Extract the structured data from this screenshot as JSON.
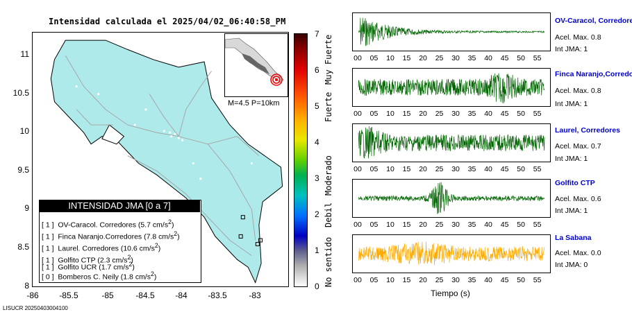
{
  "title": "Intensidad calculada el 2025/04/02_06:40:58_PM",
  "footer_id": "LISUCR 20250403004100",
  "map": {
    "lat_ticks": [
      "11",
      "10.5",
      "10",
      "9.5",
      "9",
      "8.5",
      "8"
    ],
    "lon_ticks": [
      "-86",
      "-85.5",
      "-85",
      "-84.5",
      "-84",
      "-83.5",
      "-83"
    ],
    "magnitude_label": "M=4.5 P=10km",
    "land_color": "#aeeaea"
  },
  "legend": {
    "header": "INTENSIDAD JMA [0 a 7]",
    "rows": [
      {
        "jma": "[ 1 ]",
        "text": "OV-Caracol. Corredores (5.7 cm/s",
        "exp": "2",
        "close": ")"
      },
      {
        "jma": "[ 1 ]",
        "text": "Finca Naranjo.Corredores (7.8 cm/s",
        "exp": "2",
        "close": ")"
      },
      {
        "jma": "[ 1 ]",
        "text": "Laurel. Corredores (10.6 cm/s",
        "exp": "2",
        "close": ")"
      },
      {
        "jma": "[ 1 ]",
        "text": "Golfito CTP (2.3 cm/s",
        "exp": "2",
        "close": ")"
      },
      {
        "jma": "[ 1 ]",
        "text": "Golfito UCR (1.7 cm/s",
        "exp": "2",
        "close": ")"
      },
      {
        "jma": "[ 0 ]",
        "text": "Bomberos C. Neily (1.8 cm/s",
        "exp": "2",
        "close": ")"
      }
    ]
  },
  "colorbar": {
    "ticks": [
      "7",
      "6",
      "5",
      "4",
      "3",
      "2",
      "1",
      "0"
    ],
    "words": [
      "Muy Fuerte",
      "Fuerte",
      "Moderado",
      "Debil",
      "No sentido"
    ]
  },
  "traces": {
    "x_label": "Tiempo (s)",
    "time_ticks": [
      "00",
      "05",
      "10",
      "15",
      "20",
      "25",
      "30",
      "35",
      "40",
      "45",
      "50",
      "55"
    ],
    "stations": [
      {
        "name": "OV-Caracol, Corredores",
        "acel": "Acel. Max. 0.8",
        "jma": "Int JMA: 1",
        "color": "#006600"
      },
      {
        "name": "Finca Naranjo,Corredores",
        "acel": "Acel. Max. 0.8",
        "jma": "Int JMA: 1",
        "color": "#006600"
      },
      {
        "name": "Laurel, Corredores",
        "acel": "Acel. Max. 0.7",
        "jma": "Int JMA: 1",
        "color": "#006600"
      },
      {
        "name": "Golfito CTP",
        "acel": "Acel. Max. 0.6",
        "jma": "Int JMA: 1",
        "color": "#006600"
      },
      {
        "name": "La Sabana",
        "acel": "Acel. Max. 0.0",
        "jma": "Int JMA: 0",
        "color": "#ffaa00"
      }
    ]
  },
  "chart_data": [
    {
      "type": "heatmap",
      "title": "Intensidad calculada el 2025/04/02_06:40:58_PM",
      "xlim": [
        -86,
        -82.5
      ],
      "ylim": [
        8,
        11.3
      ],
      "colorbar_range": [
        0,
        7
      ],
      "epicenter": {
        "lon": -82.9,
        "lat": 8.6
      },
      "station_markers": [
        {
          "lon": -82.88,
          "lat": 8.6
        },
        {
          "lon": -82.92,
          "lat": 8.55
        },
        {
          "lon": -83.15,
          "lat": 8.65
        },
        {
          "lon": -83.12,
          "lat": 8.9
        }
      ]
    },
    {
      "type": "line",
      "x_range": [
        0,
        57
      ],
      "series_peaks": [
        {
          "name": "OV-Caracol, Corredores",
          "peak_time_s": 1
        },
        {
          "name": "Finca Naranjo,Corredores",
          "peak_time_s": 44
        },
        {
          "name": "Laurel, Corredores",
          "peak_time_s": 3
        },
        {
          "name": "Golfito CTP",
          "peak_time_s": 25
        },
        {
          "name": "La Sabana",
          "peak_time_s": 20
        }
      ]
    }
  ]
}
